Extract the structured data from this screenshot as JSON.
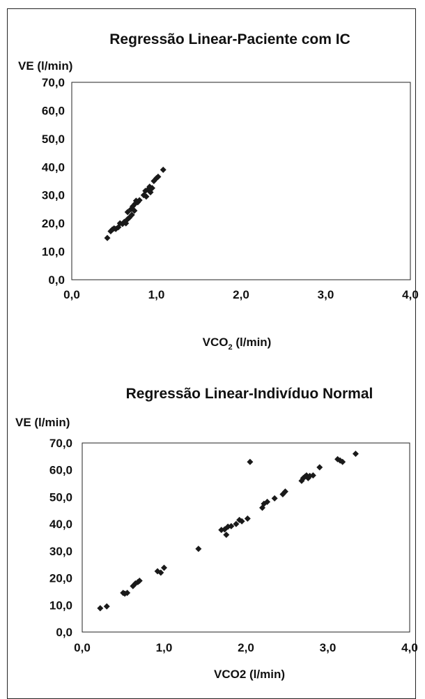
{
  "chart_data": [
    {
      "type": "scatter",
      "title": "Regressão Linear-Paciente com IC",
      "ylabel": "VE (l/min)",
      "xlabel_main": "VCO",
      "xlabel_sub": "2",
      "xlabel_tail": " (l/min)",
      "xlim": [
        0,
        4
      ],
      "ylim": [
        0,
        70
      ],
      "x_ticks": [
        "0,0",
        "1,0",
        "2,0",
        "3,0",
        "4,0"
      ],
      "y_ticks": [
        "0,0",
        "10,0",
        "20,0",
        "30,0",
        "40,0",
        "50,0",
        "60,0",
        "70,0"
      ],
      "marker_color": "#1a1a1a",
      "points": [
        [
          0.42,
          14.8
        ],
        [
          0.46,
          17.2
        ],
        [
          0.48,
          17.8
        ],
        [
          0.5,
          18.2
        ],
        [
          0.52,
          18.0
        ],
        [
          0.55,
          18.6
        ],
        [
          0.57,
          20.0
        ],
        [
          0.6,
          19.8
        ],
        [
          0.62,
          20.5
        ],
        [
          0.64,
          20.0
        ],
        [
          0.66,
          21.5
        ],
        [
          0.66,
          24.0
        ],
        [
          0.68,
          22.0
        ],
        [
          0.7,
          25.0
        ],
        [
          0.71,
          23.0
        ],
        [
          0.72,
          26.0
        ],
        [
          0.74,
          24.5
        ],
        [
          0.75,
          27.0
        ],
        [
          0.76,
          28.0
        ],
        [
          0.78,
          27.5
        ],
        [
          0.8,
          28.2
        ],
        [
          0.85,
          30.0
        ],
        [
          0.87,
          31.5
        ],
        [
          0.88,
          29.5
        ],
        [
          0.9,
          32.0
        ],
        [
          0.92,
          33.0
        ],
        [
          0.93,
          31.0
        ],
        [
          0.95,
          32.5
        ],
        [
          0.97,
          35.0
        ],
        [
          1.0,
          36.0
        ],
        [
          1.02,
          36.5
        ],
        [
          1.08,
          39.0
        ]
      ]
    },
    {
      "type": "scatter",
      "title": "Regressão Linear-Indivíduo Normal",
      "ylabel": "VE (l/min)",
      "xlabel": "VCO2 (l/min)",
      "xlim": [
        0,
        4
      ],
      "ylim": [
        0,
        70
      ],
      "x_ticks": [
        "0,0",
        "1,0",
        "2,0",
        "3,0",
        "4,0"
      ],
      "y_ticks": [
        "0,0",
        "10,0",
        "20,0",
        "30,0",
        "40,0",
        "50,0",
        "60,0",
        "70,0"
      ],
      "marker_color": "#1a1a1a",
      "points": [
        [
          0.22,
          8.8
        ],
        [
          0.3,
          9.5
        ],
        [
          0.5,
          14.5
        ],
        [
          0.52,
          14.2
        ],
        [
          0.55,
          14.5
        ],
        [
          0.62,
          17.0
        ],
        [
          0.65,
          18.0
        ],
        [
          0.68,
          18.5
        ],
        [
          0.7,
          19.0
        ],
        [
          0.92,
          22.5
        ],
        [
          0.96,
          22.0
        ],
        [
          1.0,
          23.8
        ],
        [
          1.42,
          30.8
        ],
        [
          1.7,
          37.8
        ],
        [
          1.74,
          38.0
        ],
        [
          1.76,
          36.0
        ],
        [
          1.78,
          39.0
        ],
        [
          1.82,
          39.2
        ],
        [
          1.88,
          40.0
        ],
        [
          1.92,
          41.5
        ],
        [
          1.95,
          41.0
        ],
        [
          2.02,
          42.0
        ],
        [
          2.05,
          63.0
        ],
        [
          2.2,
          46.0
        ],
        [
          2.22,
          47.5
        ],
        [
          2.26,
          48.2
        ],
        [
          2.35,
          49.5
        ],
        [
          2.45,
          51.0
        ],
        [
          2.48,
          52.0
        ],
        [
          2.68,
          56.0
        ],
        [
          2.7,
          57.0
        ],
        [
          2.72,
          57.5
        ],
        [
          2.74,
          58.0
        ],
        [
          2.76,
          57.0
        ],
        [
          2.78,
          57.8
        ],
        [
          2.82,
          58.0
        ],
        [
          2.9,
          61.0
        ],
        [
          3.12,
          64.0
        ],
        [
          3.15,
          63.5
        ],
        [
          3.18,
          63.0
        ],
        [
          3.34,
          66.0
        ]
      ]
    }
  ]
}
